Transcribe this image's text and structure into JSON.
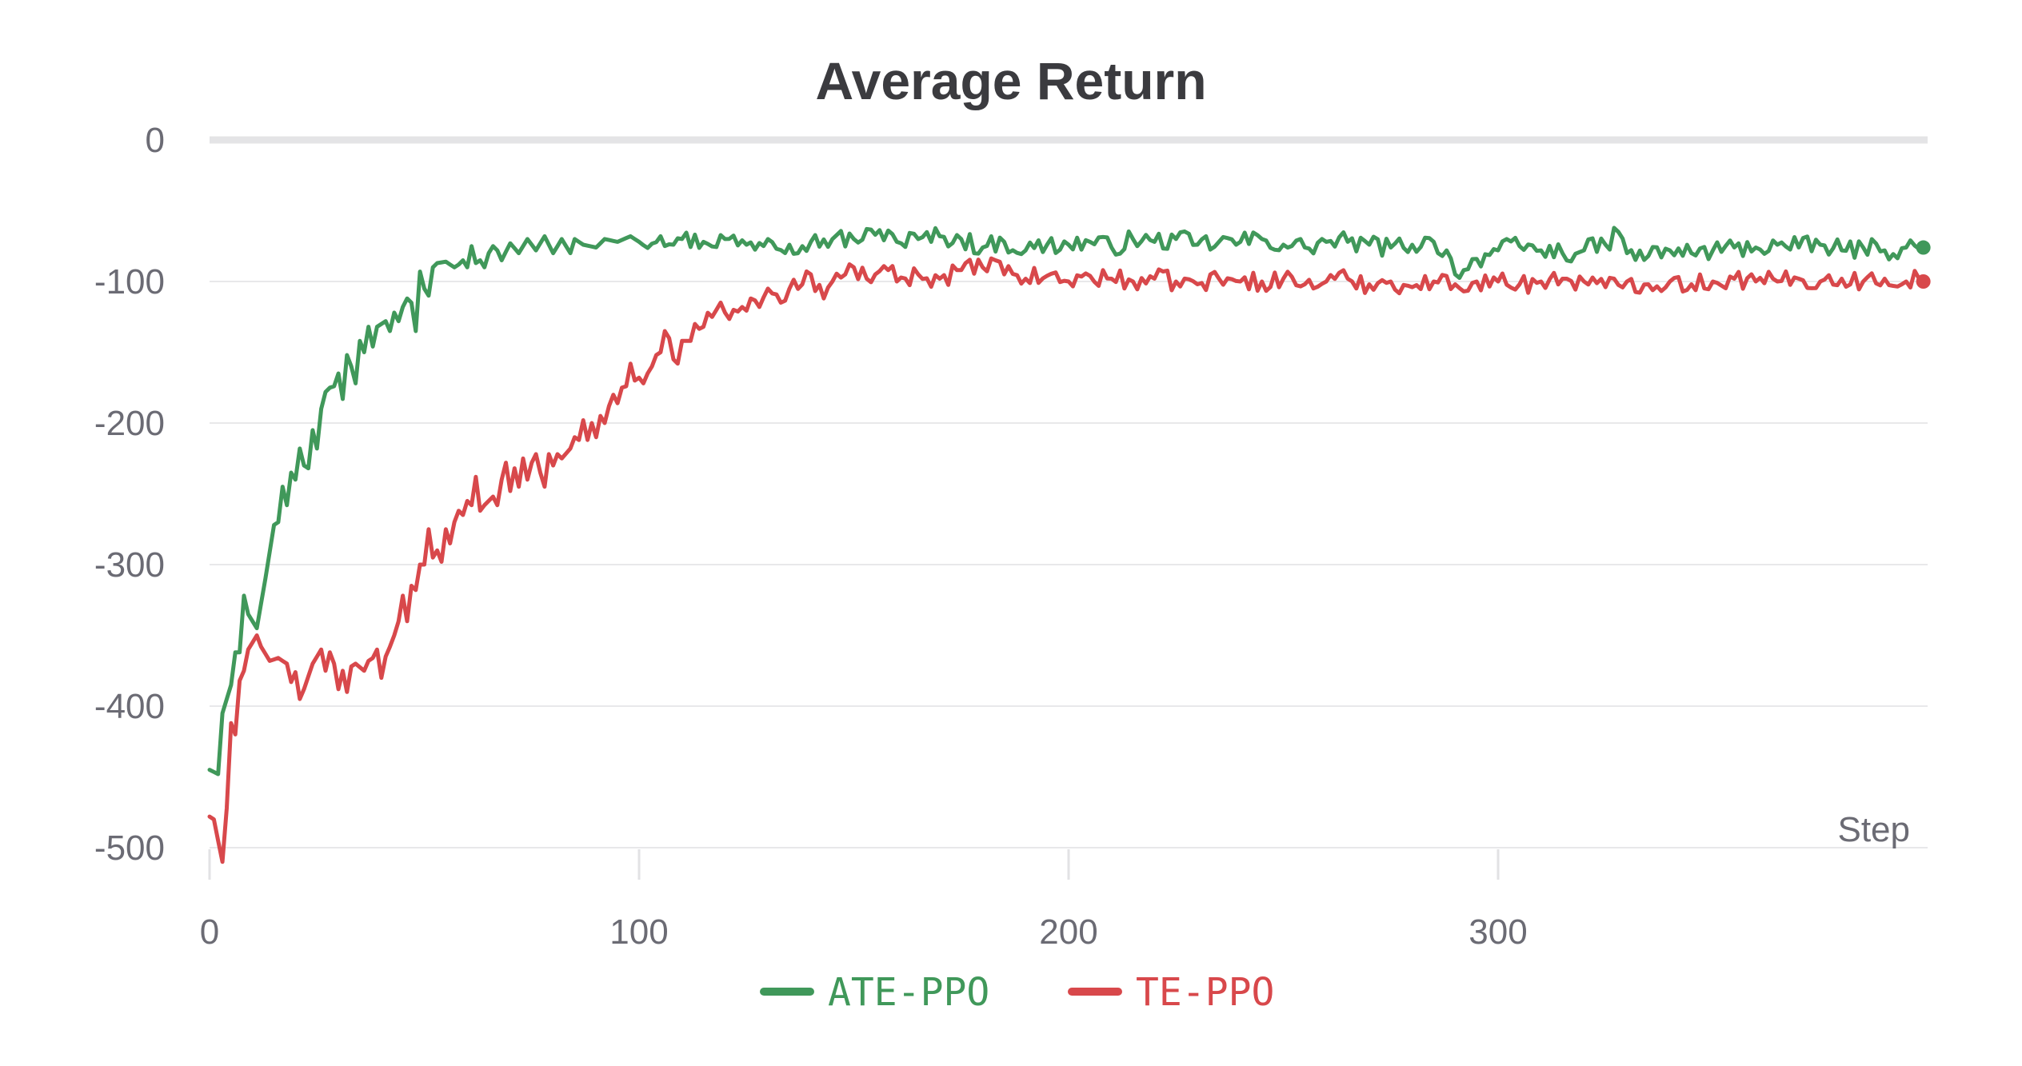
{
  "chart_data": {
    "type": "line",
    "title": "Average Return",
    "xlabel": "Step",
    "ylabel": "",
    "xlim": [
      0,
      400
    ],
    "ylim": [
      -500,
      0
    ],
    "x_ticks": [
      0,
      100,
      200,
      300
    ],
    "y_ticks": [
      0,
      -100,
      -200,
      -300,
      -400,
      -500
    ],
    "legend_position": "bottom-center",
    "series": [
      {
        "name": "ATE-PPO",
        "color": "#40985a",
        "anchors": [
          [
            0,
            -445
          ],
          [
            2,
            -448
          ],
          [
            3,
            -405
          ],
          [
            5,
            -385
          ],
          [
            6,
            -362
          ],
          [
            7,
            -362
          ],
          [
            8,
            -322
          ],
          [
            9,
            -335
          ],
          [
            11,
            -345
          ],
          [
            13,
            -310
          ],
          [
            15,
            -272
          ],
          [
            16,
            -270
          ],
          [
            17,
            -245
          ],
          [
            18,
            -258
          ],
          [
            19,
            -235
          ],
          [
            20,
            -240
          ],
          [
            21,
            -218
          ],
          [
            22,
            -230
          ],
          [
            23,
            -232
          ],
          [
            24,
            -205
          ],
          [
            25,
            -218
          ],
          [
            26,
            -190
          ],
          [
            27,
            -178
          ],
          [
            28,
            -175
          ],
          [
            29,
            -174
          ],
          [
            30,
            -165
          ],
          [
            31,
            -183
          ],
          [
            32,
            -152
          ],
          [
            33,
            -160
          ],
          [
            34,
            -172
          ],
          [
            35,
            -142
          ],
          [
            36,
            -150
          ],
          [
            37,
            -132
          ],
          [
            38,
            -146
          ],
          [
            39,
            -132
          ],
          [
            40,
            -130
          ],
          [
            41,
            -128
          ],
          [
            42,
            -135
          ],
          [
            43,
            -122
          ],
          [
            44,
            -128
          ],
          [
            45,
            -118
          ],
          [
            46,
            -112
          ],
          [
            47,
            -115
          ],
          [
            48,
            -135
          ],
          [
            49,
            -93
          ],
          [
            50,
            -105
          ],
          [
            51,
            -110
          ],
          [
            52,
            -90
          ],
          [
            53,
            -87
          ],
          [
            55,
            -86
          ],
          [
            57,
            -90
          ],
          [
            58,
            -88
          ],
          [
            59,
            -85
          ],
          [
            60,
            -90
          ],
          [
            61,
            -75
          ],
          [
            62,
            -87
          ],
          [
            63,
            -85
          ],
          [
            64,
            -90
          ],
          [
            65,
            -80
          ],
          [
            66,
            -75
          ],
          [
            67,
            -78
          ],
          [
            68,
            -85
          ],
          [
            70,
            -73
          ],
          [
            72,
            -80
          ],
          [
            74,
            -70
          ],
          [
            76,
            -78
          ],
          [
            78,
            -68
          ],
          [
            80,
            -80
          ],
          [
            82,
            -70
          ],
          [
            84,
            -80
          ],
          [
            85,
            -70
          ],
          [
            87,
            -74
          ],
          [
            90,
            -76
          ],
          [
            92,
            -70
          ],
          [
            95,
            -72
          ],
          [
            98,
            -68
          ],
          [
            100,
            -72
          ],
          [
            105,
            -68
          ],
          [
            110,
            -70
          ],
          [
            115,
            -72
          ],
          [
            120,
            -70
          ],
          [
            125,
            -74
          ],
          [
            130,
            -70
          ],
          [
            135,
            -74
          ],
          [
            140,
            -72
          ],
          [
            145,
            -70
          ],
          [
            150,
            -70
          ],
          [
            155,
            -67
          ],
          [
            158,
            -64
          ],
          [
            160,
            -72
          ],
          [
            165,
            -70
          ],
          [
            170,
            -68
          ],
          [
            175,
            -70
          ],
          [
            180,
            -76
          ],
          [
            185,
            -72
          ],
          [
            190,
            -78
          ],
          [
            195,
            -74
          ],
          [
            200,
            -74
          ],
          [
            205,
            -72
          ],
          [
            210,
            -76
          ],
          [
            215,
            -70
          ],
          [
            220,
            -72
          ],
          [
            225,
            -70
          ],
          [
            230,
            -74
          ],
          [
            235,
            -72
          ],
          [
            240,
            -72
          ],
          [
            245,
            -70
          ],
          [
            250,
            -74
          ],
          [
            255,
            -76
          ],
          [
            260,
            -72
          ],
          [
            265,
            -72
          ],
          [
            270,
            -74
          ],
          [
            275,
            -76
          ],
          [
            280,
            -74
          ],
          [
            285,
            -72
          ],
          [
            288,
            -78
          ],
          [
            290,
            -95
          ],
          [
            292,
            -92
          ],
          [
            295,
            -84
          ],
          [
            300,
            -78
          ],
          [
            305,
            -75
          ],
          [
            310,
            -78
          ],
          [
            315,
            -80
          ],
          [
            320,
            -78
          ],
          [
            325,
            -74
          ],
          [
            328,
            -65
          ],
          [
            330,
            -80
          ],
          [
            335,
            -82
          ],
          [
            340,
            -78
          ],
          [
            345,
            -80
          ],
          [
            350,
            -78
          ],
          [
            355,
            -76
          ],
          [
            360,
            -76
          ],
          [
            365,
            -74
          ],
          [
            370,
            -76
          ],
          [
            375,
            -74
          ],
          [
            380,
            -78
          ],
          [
            385,
            -76
          ],
          [
            390,
            -78
          ],
          [
            395,
            -76
          ],
          [
            398,
            -77
          ],
          [
            399,
            -76
          ]
        ]
      },
      {
        "name": "TE-PPO",
        "color": "#d8484b",
        "anchors": [
          [
            0,
            -478
          ],
          [
            1,
            -480
          ],
          [
            2,
            -495
          ],
          [
            3,
            -510
          ],
          [
            4,
            -472
          ],
          [
            5,
            -412
          ],
          [
            6,
            -420
          ],
          [
            7,
            -382
          ],
          [
            8,
            -375
          ],
          [
            9,
            -360
          ],
          [
            10,
            -355
          ],
          [
            11,
            -350
          ],
          [
            12,
            -358
          ],
          [
            14,
            -368
          ],
          [
            16,
            -366
          ],
          [
            18,
            -370
          ],
          [
            19,
            -383
          ],
          [
            20,
            -376
          ],
          [
            21,
            -395
          ],
          [
            22,
            -388
          ],
          [
            24,
            -370
          ],
          [
            25,
            -365
          ],
          [
            26,
            -360
          ],
          [
            27,
            -375
          ],
          [
            28,
            -362
          ],
          [
            29,
            -370
          ],
          [
            30,
            -388
          ],
          [
            31,
            -375
          ],
          [
            32,
            -390
          ],
          [
            33,
            -372
          ],
          [
            34,
            -370
          ],
          [
            36,
            -375
          ],
          [
            37,
            -368
          ],
          [
            38,
            -366
          ],
          [
            39,
            -360
          ],
          [
            40,
            -380
          ],
          [
            41,
            -365
          ],
          [
            42,
            -358
          ],
          [
            43,
            -350
          ],
          [
            44,
            -340
          ],
          [
            45,
            -322
          ],
          [
            46,
            -340
          ],
          [
            47,
            -315
          ],
          [
            48,
            -318
          ],
          [
            49,
            -300
          ],
          [
            50,
            -300
          ],
          [
            51,
            -275
          ],
          [
            52,
            -295
          ],
          [
            53,
            -290
          ],
          [
            54,
            -298
          ],
          [
            55,
            -275
          ],
          [
            56,
            -285
          ],
          [
            57,
            -270
          ],
          [
            58,
            -262
          ],
          [
            59,
            -265
          ],
          [
            60,
            -255
          ],
          [
            61,
            -258
          ],
          [
            62,
            -238
          ],
          [
            63,
            -262
          ],
          [
            64,
            -258
          ],
          [
            65,
            -255
          ],
          [
            66,
            -252
          ],
          [
            67,
            -258
          ],
          [
            68,
            -240
          ],
          [
            69,
            -228
          ],
          [
            70,
            -248
          ],
          [
            71,
            -232
          ],
          [
            72,
            -245
          ],
          [
            73,
            -225
          ],
          [
            74,
            -240
          ],
          [
            75,
            -228
          ],
          [
            76,
            -222
          ],
          [
            77,
            -235
          ],
          [
            78,
            -245
          ],
          [
            79,
            -222
          ],
          [
            80,
            -230
          ],
          [
            81,
            -222
          ],
          [
            82,
            -225
          ],
          [
            84,
            -218
          ],
          [
            85,
            -210
          ],
          [
            86,
            -212
          ],
          [
            87,
            -198
          ],
          [
            88,
            -212
          ],
          [
            89,
            -200
          ],
          [
            90,
            -210
          ],
          [
            91,
            -195
          ],
          [
            92,
            -200
          ],
          [
            93,
            -188
          ],
          [
            94,
            -180
          ],
          [
            95,
            -186
          ],
          [
            96,
            -175
          ],
          [
            97,
            -174
          ],
          [
            98,
            -158
          ],
          [
            99,
            -170
          ],
          [
            100,
            -168
          ],
          [
            101,
            -172
          ],
          [
            102,
            -165
          ],
          [
            103,
            -160
          ],
          [
            104,
            -152
          ],
          [
            105,
            -150
          ],
          [
            106,
            -135
          ],
          [
            107,
            -140
          ],
          [
            108,
            -155
          ],
          [
            109,
            -158
          ],
          [
            110,
            -142
          ],
          [
            111,
            -142
          ],
          [
            112,
            -142
          ],
          [
            113,
            -130
          ],
          [
            115,
            -132
          ],
          [
            117,
            -125
          ],
          [
            118,
            -120
          ],
          [
            120,
            -122
          ],
          [
            122,
            -120
          ],
          [
            124,
            -118
          ],
          [
            126,
            -112
          ],
          [
            128,
            -118
          ],
          [
            130,
            -105
          ],
          [
            133,
            -115
          ],
          [
            135,
            -105
          ],
          [
            138,
            -102
          ],
          [
            140,
            -95
          ],
          [
            143,
            -112
          ],
          [
            145,
            -100
          ],
          [
            148,
            -95
          ],
          [
            150,
            -90
          ],
          [
            153,
            -98
          ],
          [
            155,
            -95
          ],
          [
            158,
            -92
          ],
          [
            160,
            -100
          ],
          [
            165,
            -95
          ],
          [
            170,
            -98
          ],
          [
            175,
            -92
          ],
          [
            180,
            -90
          ],
          [
            183,
            -85
          ],
          [
            185,
            -95
          ],
          [
            190,
            -98
          ],
          [
            195,
            -96
          ],
          [
            200,
            -100
          ],
          [
            205,
            -96
          ],
          [
            210,
            -98
          ],
          [
            215,
            -100
          ],
          [
            220,
            -98
          ],
          [
            225,
            -100
          ],
          [
            230,
            -102
          ],
          [
            235,
            -98
          ],
          [
            240,
            -100
          ],
          [
            245,
            -100
          ],
          [
            250,
            -98
          ],
          [
            255,
            -102
          ],
          [
            260,
            -100
          ],
          [
            265,
            -98
          ],
          [
            270,
            -102
          ],
          [
            275,
            -100
          ],
          [
            280,
            -104
          ],
          [
            285,
            -100
          ],
          [
            290,
            -102
          ],
          [
            295,
            -100
          ],
          [
            300,
            -100
          ],
          [
            305,
            -102
          ],
          [
            310,
            -100
          ],
          [
            315,
            -98
          ],
          [
            320,
            -100
          ],
          [
            325,
            -104
          ],
          [
            330,
            -100
          ],
          [
            335,
            -102
          ],
          [
            340,
            -100
          ],
          [
            345,
            -102
          ],
          [
            350,
            -100
          ],
          [
            355,
            -98
          ],
          [
            360,
            -100
          ],
          [
            365,
            -100
          ],
          [
            370,
            -98
          ],
          [
            375,
            -100
          ],
          [
            380,
            -98
          ],
          [
            385,
            -100
          ],
          [
            390,
            -98
          ],
          [
            395,
            -100
          ],
          [
            398,
            -98
          ],
          [
            399,
            -100
          ]
        ]
      }
    ]
  }
}
